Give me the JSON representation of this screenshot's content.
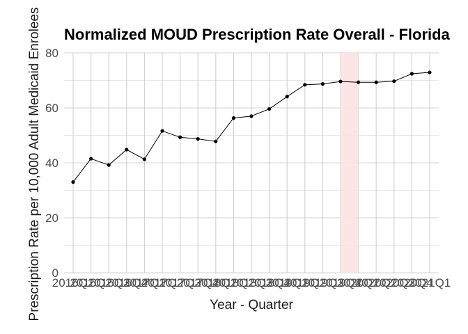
{
  "chart_data": {
    "type": "line",
    "title": "Normalized MOUD Prescription Rate Overall - Florida",
    "xlabel": "Year - Quarter",
    "ylabel": "Prescription Rate per 10,000 Adult Medicaid Enrolees",
    "ylim": [
      0,
      80
    ],
    "yticks": [
      0,
      20,
      40,
      60,
      80
    ],
    "grid": true,
    "categories": [
      "2016Q1",
      "2016Q2",
      "2016Q3",
      "2016Q4",
      "2017Q1",
      "2017Q2",
      "2017Q3",
      "2017Q4",
      "2018Q1",
      "2018Q2",
      "2018Q3",
      "2018Q4",
      "2019Q1",
      "2019Q2",
      "2019Q3",
      "2019Q4",
      "2020Q1",
      "2020Q2",
      "2020Q3",
      "2020Q4",
      "2021Q1"
    ],
    "series": [
      {
        "values": [
          33.0,
          41.5,
          39.2,
          44.8,
          41.3,
          51.6,
          49.3,
          48.7,
          47.8,
          56.3,
          57.0,
          59.6,
          64.1,
          68.4,
          68.7,
          69.6,
          69.3,
          69.3,
          69.7,
          72.4,
          72.9
        ]
      }
    ],
    "highlight": {
      "from": "2019Q4",
      "to": "2020Q1",
      "color": "#fde2e4"
    },
    "colors": {
      "line": "#000000",
      "point": "#000000",
      "grid": "#d0d0d0",
      "highlight": "#fde2e4"
    }
  }
}
